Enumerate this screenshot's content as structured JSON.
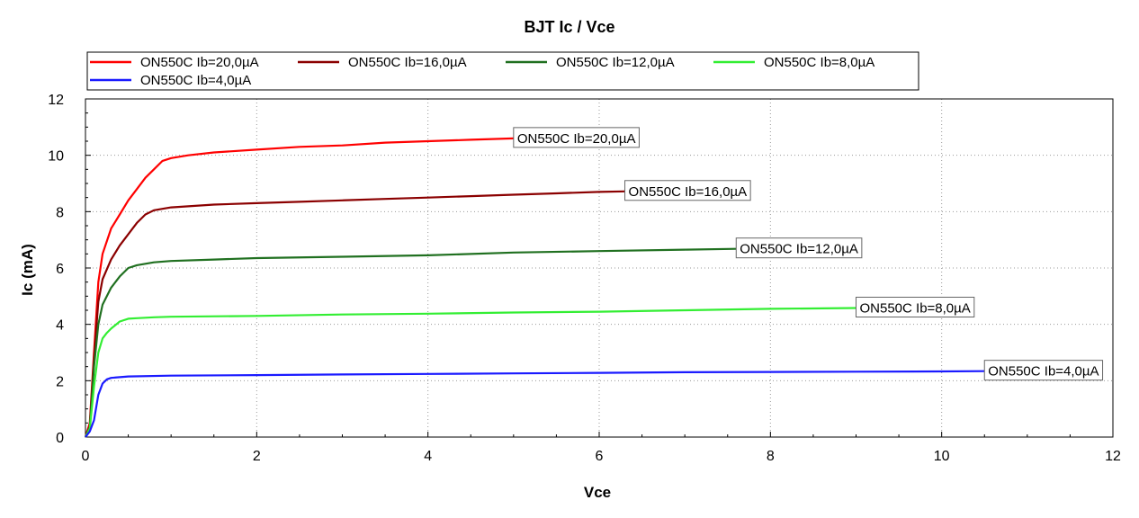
{
  "chart_data": {
    "type": "line",
    "title": "BJT Ic / Vce",
    "xlabel": "Vce",
    "ylabel": "Ic (mA)",
    "xlim": [
      0,
      12
    ],
    "ylim": [
      0,
      12
    ],
    "xticks": [
      "0",
      "2",
      "4",
      "6",
      "8",
      "10",
      "12"
    ],
    "yticks": [
      "0",
      "2",
      "4",
      "6",
      "8",
      "10",
      "12"
    ],
    "grid": true,
    "legend": "top-left",
    "series": [
      {
        "name": "ON550C Ib=20,0µA",
        "color": "#ff0000",
        "x": [
          0,
          0.05,
          0.1,
          0.15,
          0.2,
          0.3,
          0.4,
          0.5,
          0.6,
          0.7,
          0.8,
          0.9,
          1.0,
          1.2,
          1.5,
          2.0,
          2.5,
          3.0,
          3.5,
          4.0,
          4.5,
          5.0
        ],
        "y": [
          0,
          0.5,
          3.0,
          5.5,
          6.5,
          7.4,
          7.9,
          8.4,
          8.8,
          9.2,
          9.5,
          9.8,
          9.9,
          10.0,
          10.1,
          10.2,
          10.3,
          10.35,
          10.45,
          10.5,
          10.55,
          10.6
        ]
      },
      {
        "name": "ON550C Ib=16,0µA",
        "color": "#8b0000",
        "x": [
          0,
          0.05,
          0.1,
          0.15,
          0.2,
          0.3,
          0.4,
          0.5,
          0.6,
          0.7,
          0.8,
          0.9,
          1.0,
          1.5,
          2.0,
          2.5,
          3.0,
          3.5,
          4.0,
          4.5,
          5.0,
          5.5,
          6.0,
          6.3
        ],
        "y": [
          0,
          0.4,
          2.8,
          4.8,
          5.6,
          6.3,
          6.8,
          7.2,
          7.6,
          7.9,
          8.05,
          8.1,
          8.15,
          8.25,
          8.3,
          8.35,
          8.4,
          8.45,
          8.5,
          8.55,
          8.6,
          8.65,
          8.7,
          8.72
        ]
      },
      {
        "name": "ON550C Ib=12,0µA",
        "color": "#207020",
        "x": [
          0,
          0.05,
          0.1,
          0.15,
          0.2,
          0.3,
          0.4,
          0.5,
          0.6,
          0.7,
          0.8,
          1.0,
          1.5,
          2.0,
          3.0,
          4.0,
          5.0,
          6.0,
          7.0,
          7.6
        ],
        "y": [
          0,
          0.35,
          2.5,
          4.0,
          4.7,
          5.3,
          5.7,
          6.0,
          6.1,
          6.15,
          6.2,
          6.25,
          6.3,
          6.35,
          6.4,
          6.45,
          6.55,
          6.6,
          6.65,
          6.68
        ]
      },
      {
        "name": "ON550C Ib=8,0µA",
        "color": "#33ee33",
        "x": [
          0,
          0.05,
          0.1,
          0.15,
          0.2,
          0.25,
          0.3,
          0.4,
          0.5,
          0.6,
          0.8,
          1.0,
          2.0,
          3.0,
          4.0,
          5.0,
          6.0,
          7.0,
          8.0,
          9.0
        ],
        "y": [
          0,
          0.3,
          1.8,
          3.0,
          3.5,
          3.7,
          3.85,
          4.1,
          4.2,
          4.22,
          4.25,
          4.27,
          4.3,
          4.35,
          4.38,
          4.42,
          4.45,
          4.5,
          4.55,
          4.58
        ]
      },
      {
        "name": "ON550C Ib=4,0µA",
        "color": "#1a1aff",
        "x": [
          0,
          0.05,
          0.1,
          0.15,
          0.2,
          0.25,
          0.3,
          0.5,
          1.0,
          2.0,
          3.0,
          4.0,
          5.0,
          6.0,
          7.0,
          8.0,
          9.0,
          10.0,
          10.5
        ],
        "y": [
          0,
          0.2,
          0.6,
          1.5,
          1.9,
          2.05,
          2.1,
          2.15,
          2.18,
          2.2,
          2.22,
          2.24,
          2.26,
          2.28,
          2.3,
          2.31,
          2.32,
          2.33,
          2.34
        ]
      }
    ]
  }
}
